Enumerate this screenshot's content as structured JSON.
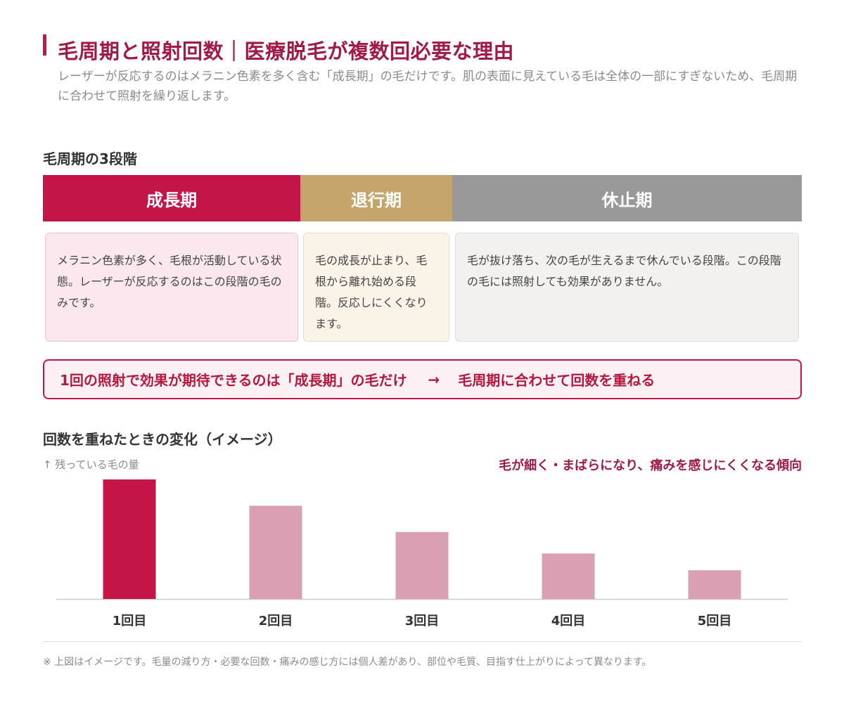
{
  "header": {
    "title": "毛周期と照射回数｜医療脱毛が複数回必要な理由",
    "subtitle": "レーザーが反応するのはメラニン色素を多く含む「成長期」の毛だけです。肌の表面に見えている毛は全体の一部にすぎないため、毛周期に合わせて照射を繰り返します。"
  },
  "cycle": {
    "heading": "毛周期の3段階",
    "stages": [
      {
        "label": "成長期",
        "color": "#c31548",
        "description": "メラニン色素が多く、毛根が活動している状態。レーザーが反応するのはこの段階の毛のみです。"
      },
      {
        "label": "退行期",
        "color": "#c4a56b",
        "description": "毛の成長が止まり、毛根から離れ始める段階。反応しにくくなります。"
      },
      {
        "label": "休止期",
        "color": "#999999",
        "description": "毛が抜け落ち、次の毛が生えるまで休んでいる段階。この段階の毛には照射しても効果がありません。"
      }
    ]
  },
  "callout": {
    "left": "1回の照射で効果が期待できるのは「成長期」の毛だけ",
    "arrow": "→",
    "right": "毛周期に合わせて回数を重ねる"
  },
  "change": {
    "heading": "回数を重ねたときの変化（イメージ）",
    "axis_note": "↑ 残っている毛の量",
    "trend_note": "毛が細く・まばらになり、痛みを感じにくくなる傾向"
  },
  "chart_data": {
    "type": "bar",
    "categories": [
      "1回目",
      "2回目",
      "3回目",
      "4回目",
      "5回目"
    ],
    "values": [
      100,
      78,
      56,
      38,
      24
    ],
    "ylim": [
      0,
      100
    ],
    "grid": false,
    "colors": {
      "highlight": "#c31548",
      "default": "#d99fb2",
      "baseline": "#cccccc"
    }
  },
  "footnote": "※ 上図はイメージです。毛量の減り方・必要な回数・痛みの感じ方には個人差があり、部位や毛質、目指す仕上がりによって異なります。"
}
